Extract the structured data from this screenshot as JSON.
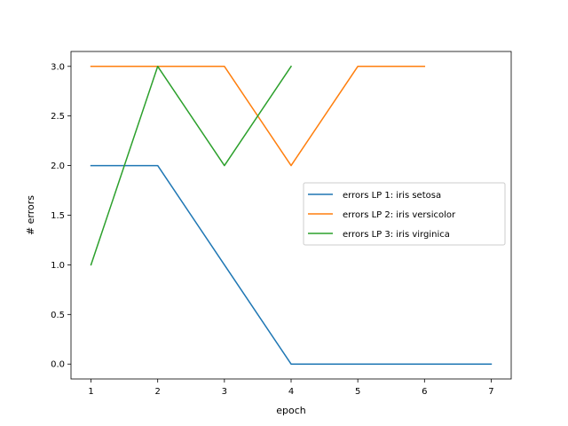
{
  "chart_data": {
    "type": "line",
    "title": "",
    "xlabel": "epoch",
    "ylabel": "# errors",
    "xlim": [
      0.7,
      7.3
    ],
    "ylim": [
      -0.15,
      3.15
    ],
    "xticks": [
      "1",
      "2",
      "3",
      "4",
      "5",
      "6",
      "7"
    ],
    "yticks": [
      "0.0",
      "0.5",
      "1.0",
      "1.5",
      "2.0",
      "2.5",
      "3.0"
    ],
    "grid": false,
    "legend_position": "center-right",
    "series": [
      {
        "name": "errors LP 1: iris setosa",
        "color": "#1f77b4",
        "x": [
          1,
          2,
          3,
          4,
          5,
          6,
          7
        ],
        "y": [
          2,
          2,
          1,
          0,
          0,
          0,
          0
        ]
      },
      {
        "name": "errors LP 2: iris versicolor",
        "color": "#ff7f0e",
        "x": [
          1,
          2,
          3,
          4,
          5,
          6
        ],
        "y": [
          3,
          3,
          3,
          2,
          3,
          3
        ]
      },
      {
        "name": "errors LP 3: iris virginica",
        "color": "#2ca02c",
        "x": [
          1,
          2,
          3,
          4
        ],
        "y": [
          1,
          3,
          2,
          3
        ]
      }
    ]
  }
}
